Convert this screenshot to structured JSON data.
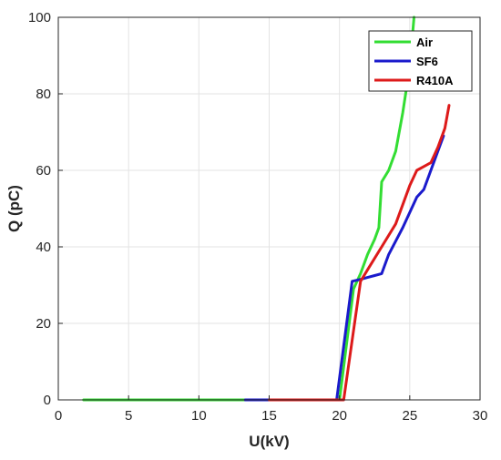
{
  "chart_data": {
    "type": "line",
    "xlabel": "U(kV)",
    "ylabel": "Q (pC)",
    "xlim": [
      0,
      30
    ],
    "ylim": [
      0,
      100
    ],
    "xticks": [
      0,
      5,
      10,
      15,
      20,
      25,
      30
    ],
    "yticks": [
      0,
      20,
      40,
      60,
      80,
      100
    ],
    "grid": true,
    "legend_position": "top-right",
    "series": [
      {
        "name": "Air",
        "color": "#33dd33",
        "x": [
          1.8,
          13.0,
          20.0,
          21.0,
          21.5,
          22.0,
          22.5,
          22.8,
          23.0,
          23.5,
          24.0,
          24.5,
          25.0,
          25.3
        ],
        "y": [
          0,
          0,
          0,
          29,
          33,
          38,
          42,
          45,
          57,
          60,
          65,
          75,
          87,
          100
        ]
      },
      {
        "name": "SF6",
        "color": "#1a1acc",
        "x": [
          13.3,
          19.8,
          20.9,
          21.5,
          22.0,
          22.5,
          23.0,
          23.5,
          24.5,
          25.5,
          26.0,
          27.0,
          27.4
        ],
        "y": [
          0,
          0,
          31,
          31.5,
          32,
          32.5,
          33,
          38,
          45,
          53,
          55,
          65,
          69
        ]
      },
      {
        "name": "R410A",
        "color": "#dd1a1a",
        "x": [
          15.0,
          20.3,
          21.5,
          22.0,
          23.0,
          24.0,
          24.5,
          25.0,
          25.5,
          26.0,
          26.5,
          27.0,
          27.5,
          27.8
        ],
        "y": [
          0,
          0,
          31,
          34,
          40,
          46,
          51,
          56,
          60,
          61,
          62,
          66,
          71,
          77
        ]
      }
    ]
  }
}
